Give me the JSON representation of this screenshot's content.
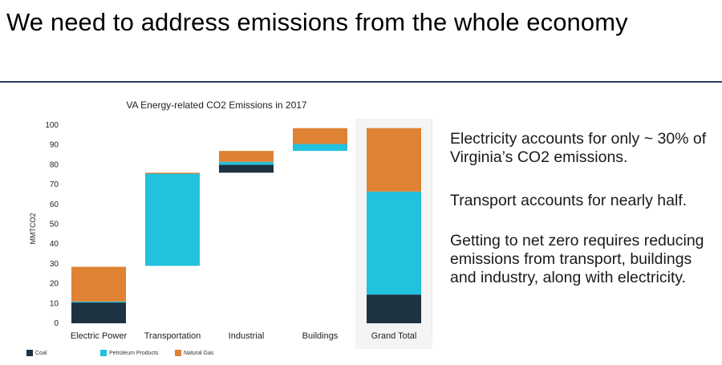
{
  "slide": {
    "title": "We need to address emissions from the whole economy"
  },
  "colors": {
    "coal": "#1d3342",
    "petroleum": "#22c1dd",
    "natural_gas": "#df8233",
    "rule": "#2f3a66"
  },
  "chart_data": {
    "type": "bar",
    "subtype": "waterfall-stacked",
    "title": "VA Energy-related CO2 Emissions in 2017",
    "ylabel": "MMTCO2",
    "xlabel": "",
    "ylim": [
      0,
      100
    ],
    "yticks": [
      0,
      10,
      20,
      30,
      40,
      50,
      60,
      70,
      80,
      90,
      100
    ],
    "grid": false,
    "legend_position": "bottom",
    "categories": [
      "Electric Power",
      "Transportation",
      "Industrial",
      "Buildings",
      "Grand Total"
    ],
    "series": [
      {
        "name": "Coal",
        "color": "#1d3342",
        "segments": [
          [
            0,
            10.5
          ],
          null,
          [
            76,
            80
          ],
          null,
          [
            0,
            14.5
          ]
        ]
      },
      {
        "name": "Petroleum Products",
        "color": "#22c1dd",
        "segments": [
          [
            10.5,
            11
          ],
          [
            29,
            75.5
          ],
          [
            80,
            81.5
          ],
          [
            87,
            90.5
          ],
          [
            14.5,
            66.5
          ]
        ]
      },
      {
        "name": "Natural Gas",
        "color": "#df8233",
        "segments": [
          [
            11,
            28.5
          ],
          [
            75.5,
            76
          ],
          [
            81.5,
            87
          ],
          [
            90.5,
            98.5
          ],
          [
            66.5,
            98.5
          ]
        ]
      }
    ]
  },
  "panel": {
    "paragraphs": [
      "Electricity accounts for only ~ 30% of Virginia’s CO2 emissions.",
      "Transport accounts for nearly half.",
      "Getting to net zero requires reducing emissions from transport, buildings and industry, along with electricity."
    ]
  }
}
